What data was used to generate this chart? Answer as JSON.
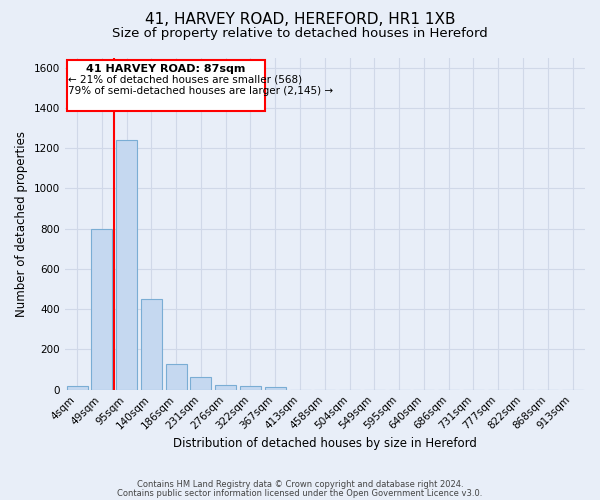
{
  "title": "41, HARVEY ROAD, HEREFORD, HR1 1XB",
  "subtitle": "Size of property relative to detached houses in Hereford",
  "xlabel": "Distribution of detached houses by size in Hereford",
  "ylabel": "Number of detached properties",
  "bar_labels": [
    "4sqm",
    "49sqm",
    "95sqm",
    "140sqm",
    "186sqm",
    "231sqm",
    "276sqm",
    "322sqm",
    "367sqm",
    "413sqm",
    "458sqm",
    "504sqm",
    "549sqm",
    "595sqm",
    "640sqm",
    "686sqm",
    "731sqm",
    "777sqm",
    "822sqm",
    "868sqm",
    "913sqm"
  ],
  "bar_values": [
    20,
    800,
    1240,
    450,
    130,
    65,
    25,
    20,
    15,
    0,
    0,
    0,
    0,
    0,
    0,
    0,
    0,
    0,
    0,
    0,
    0
  ],
  "bar_color": "#c5d8f0",
  "bar_edge_color": "#7aadd4",
  "ylim": [
    0,
    1650
  ],
  "yticks": [
    0,
    200,
    400,
    600,
    800,
    1000,
    1200,
    1400,
    1600
  ],
  "red_line_x": 1.5,
  "annotation_text_line1": "41 HARVEY ROAD: 87sqm",
  "annotation_text_line2": "← 21% of detached houses are smaller (568)",
  "annotation_text_line3": "79% of semi-detached houses are larger (2,145) →",
  "footer_line1": "Contains HM Land Registry data © Crown copyright and database right 2024.",
  "footer_line2": "Contains public sector information licensed under the Open Government Licence v3.0.",
  "background_color": "#e8eef8",
  "plot_background_color": "#e8eef8",
  "grid_color": "#d0d8e8",
  "title_fontsize": 11,
  "subtitle_fontsize": 9.5,
  "axis_label_fontsize": 8.5,
  "tick_fontsize": 7.5
}
